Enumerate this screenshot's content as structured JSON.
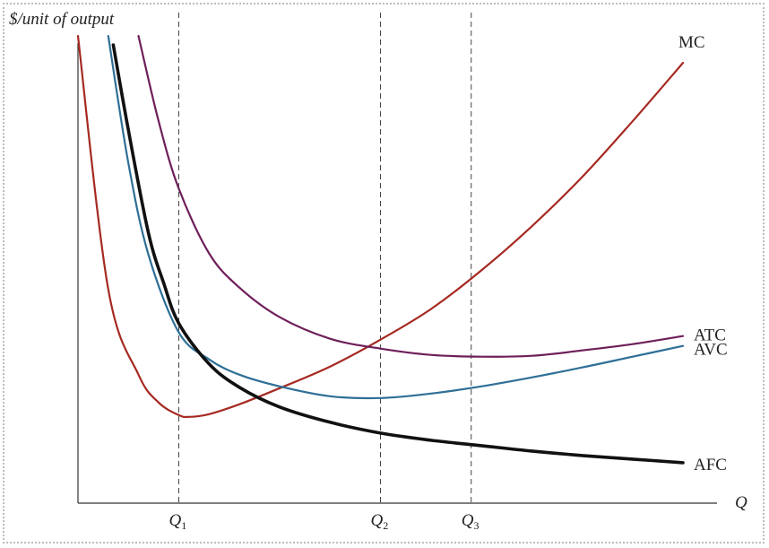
{
  "chart_data": {
    "type": "line",
    "title": "",
    "ylabel": "$/unit of output",
    "xlabel": "Q",
    "grid": false,
    "x_ticks": [
      {
        "base": "Q",
        "sub": "1"
      },
      {
        "base": "Q",
        "sub": "2"
      },
      {
        "base": "Q",
        "sub": "3"
      }
    ],
    "series": [
      {
        "name": "MC",
        "color": "#a52a22",
        "width": 2.2,
        "points": [
          [
            0.0,
            520
          ],
          [
            0.3,
            238
          ],
          [
            0.6,
            143
          ],
          [
            0.8,
            112
          ],
          [
            1.0,
            98
          ],
          [
            1.1,
            96
          ],
          [
            1.3,
            99
          ],
          [
            1.6,
            110
          ],
          [
            2.0,
            128
          ],
          [
            2.5,
            152
          ],
          [
            3.0,
            182
          ],
          [
            3.5,
            216
          ],
          [
            4.0,
            259
          ],
          [
            4.5,
            308
          ],
          [
            5.0,
            363
          ],
          [
            5.5,
            425
          ],
          [
            6.0,
            490
          ]
        ]
      },
      {
        "name": "ATC",
        "color": "#6e1f5a",
        "width": 2.2,
        "points": [
          [
            0.6,
            520
          ],
          [
            0.8,
            425
          ],
          [
            1.0,
            350
          ],
          [
            1.3,
            278
          ],
          [
            1.6,
            240
          ],
          [
            2.0,
            207
          ],
          [
            2.5,
            183
          ],
          [
            3.0,
            172
          ],
          [
            3.5,
            165
          ],
          [
            4.0,
            163
          ],
          [
            4.5,
            164
          ],
          [
            5.0,
            170
          ],
          [
            5.5,
            177
          ],
          [
            6.0,
            186
          ]
        ]
      },
      {
        "name": "AVC",
        "color": "#2e6f96",
        "width": 2.2,
        "points": [
          [
            0.3,
            520
          ],
          [
            0.5,
            378
          ],
          [
            0.7,
            276
          ],
          [
            1.0,
            190
          ],
          [
            1.3,
            160
          ],
          [
            1.6,
            143
          ],
          [
            2.0,
            130
          ],
          [
            2.5,
            119
          ],
          [
            3.0,
            117
          ],
          [
            3.5,
            122
          ],
          [
            4.0,
            130
          ],
          [
            4.5,
            140
          ],
          [
            5.0,
            151
          ],
          [
            5.5,
            163
          ],
          [
            6.0,
            175
          ]
        ]
      },
      {
        "name": "AFC",
        "color": "#111111",
        "width": 3.6,
        "points": [
          [
            0.35,
            510
          ],
          [
            0.5,
            415
          ],
          [
            0.7,
            300
          ],
          [
            0.85,
            245
          ],
          [
            1.0,
            200
          ],
          [
            1.3,
            155
          ],
          [
            1.6,
            129
          ],
          [
            2.0,
            107
          ],
          [
            2.5,
            90
          ],
          [
            3.0,
            78
          ],
          [
            3.5,
            70
          ],
          [
            4.0,
            64
          ],
          [
            4.5,
            58
          ],
          [
            5.0,
            53
          ],
          [
            5.5,
            49
          ],
          [
            6.0,
            45
          ]
        ]
      }
    ],
    "reference_lines_x": [
      1.0,
      3.0,
      3.9
    ],
    "xlim": [
      0,
      6.4
    ],
    "ylim": [
      0,
      560
    ]
  }
}
